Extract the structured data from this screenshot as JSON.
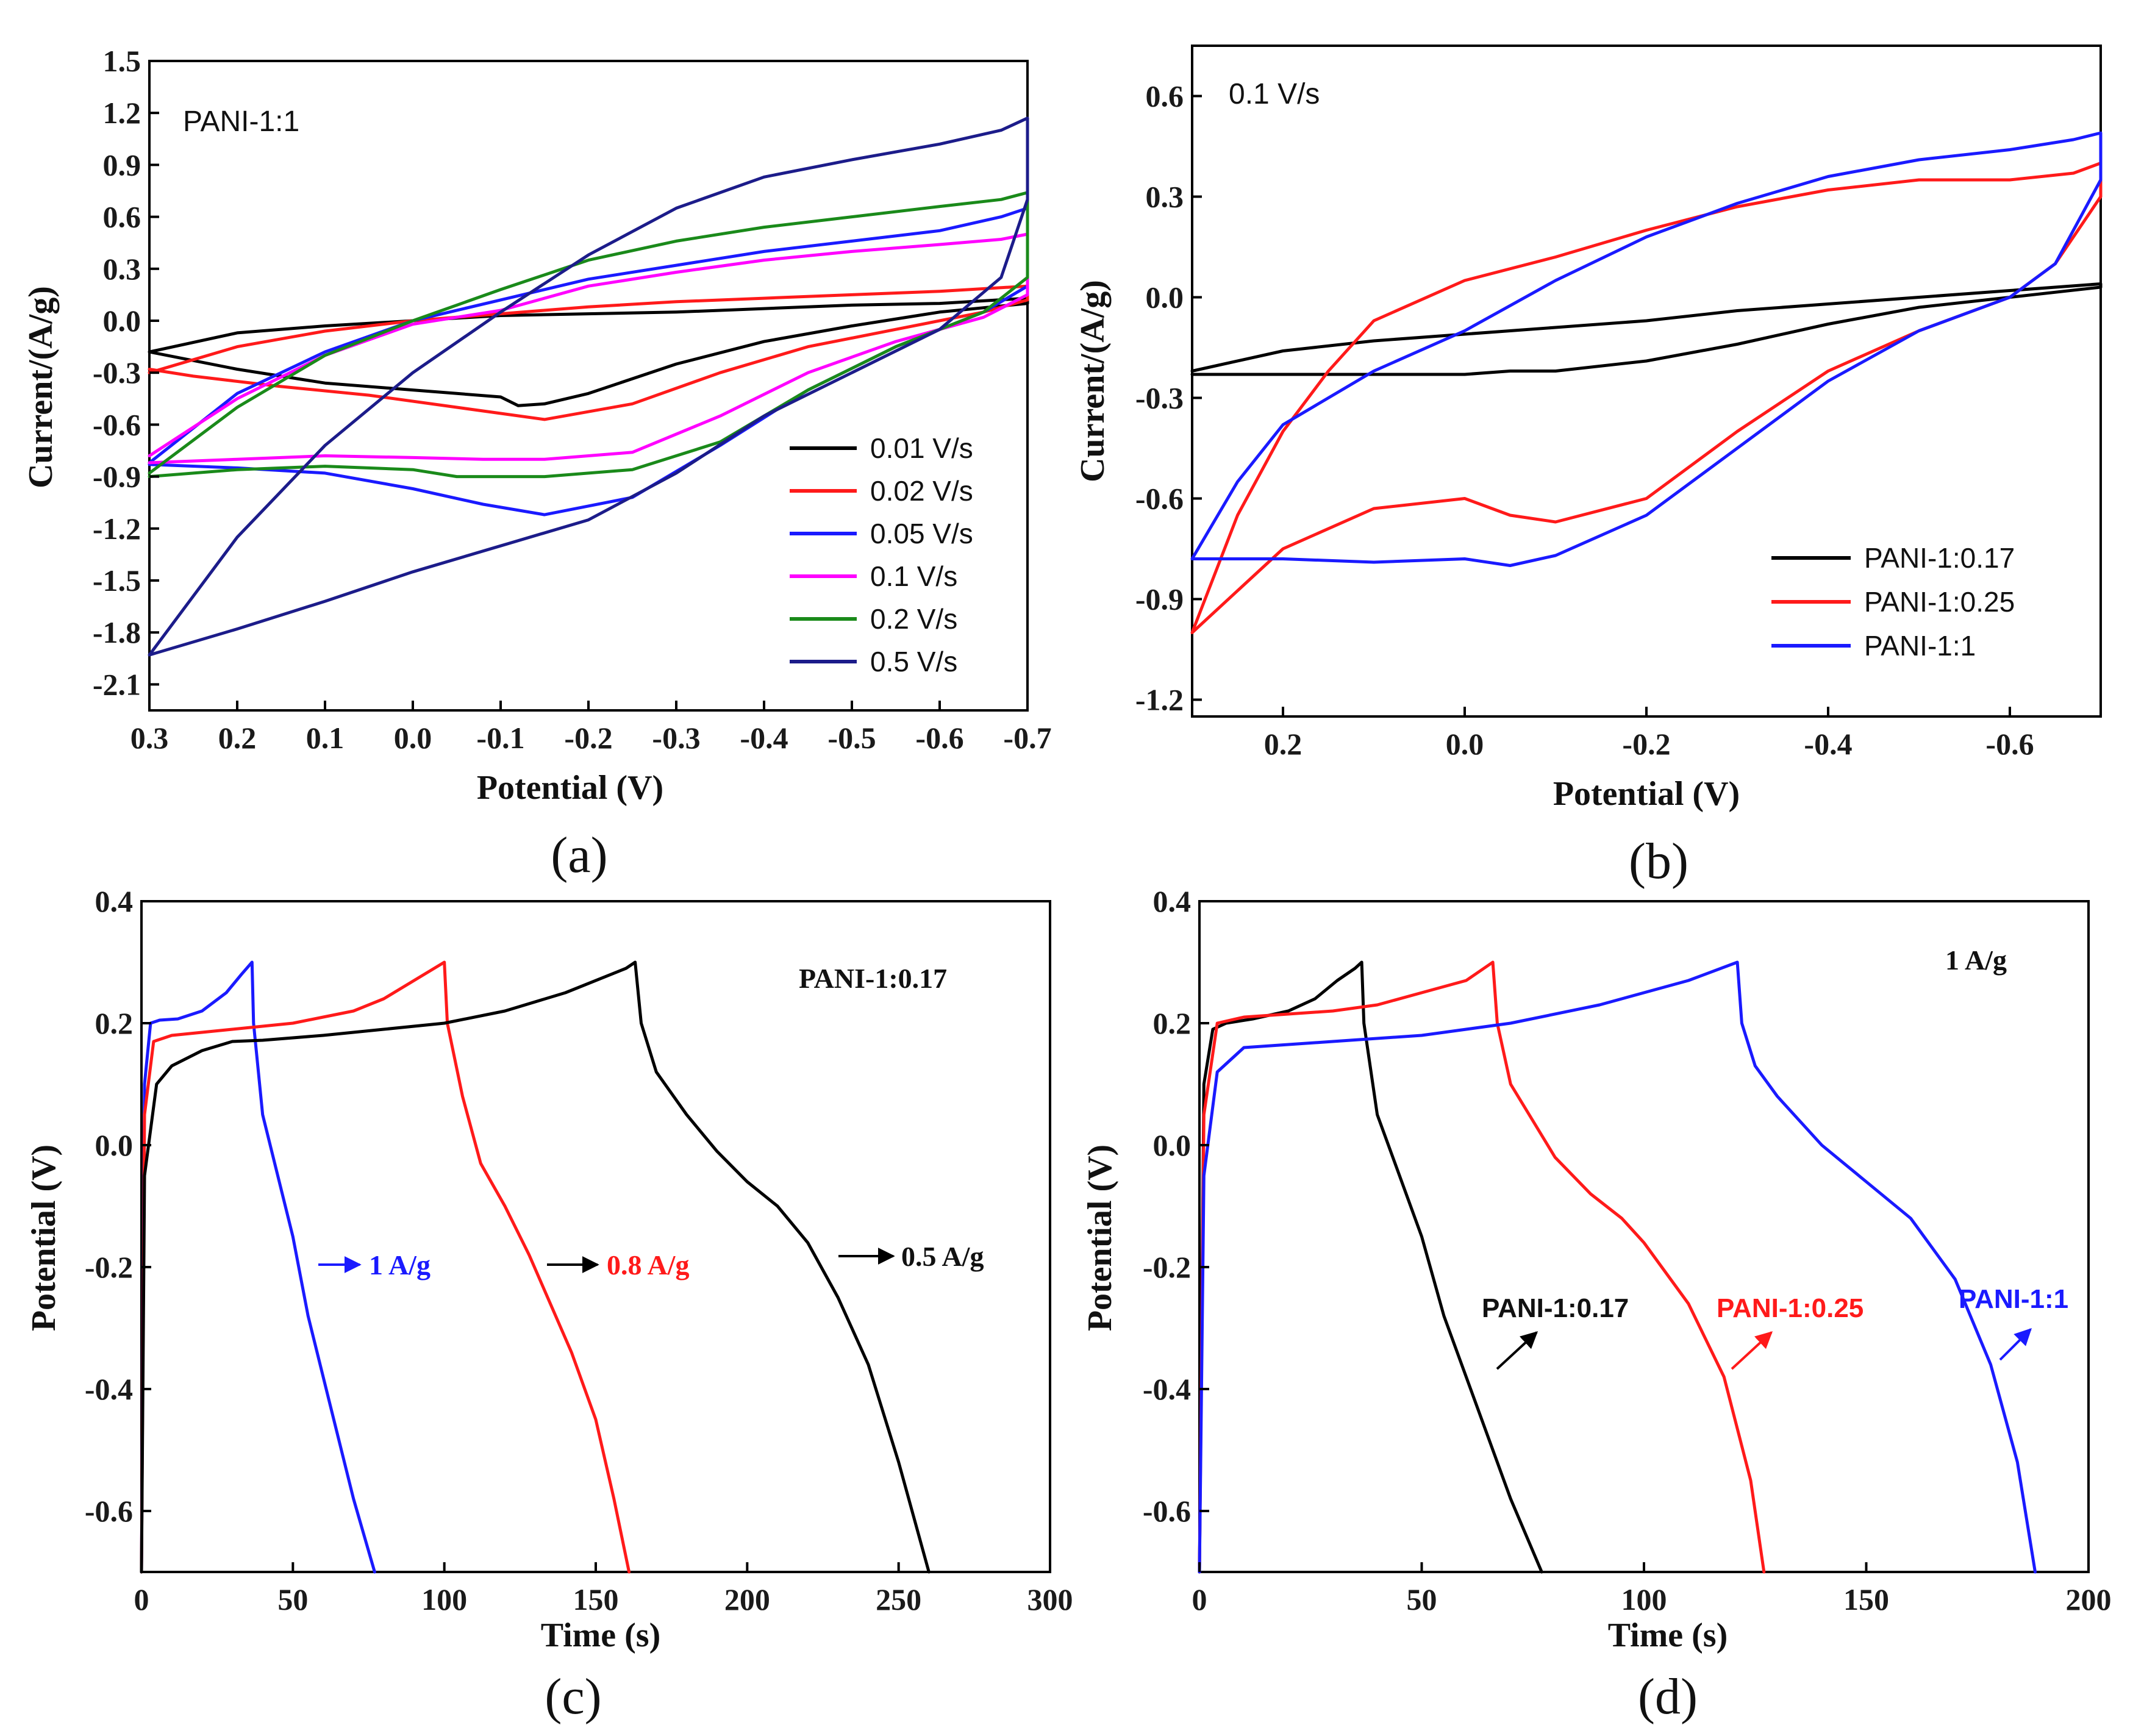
{
  "colors": {
    "black": "#000000",
    "red": "#ff1a1a",
    "blue": "#1a1aff",
    "magenta": "#ff00ff",
    "green": "#1a8a1a",
    "navy": "#1c1c8a"
  },
  "chart_data": [
    {
      "id": "a",
      "type": "line",
      "panel_label": "(a)",
      "xlabel": "Potential (V)",
      "ylabel": "Current/(A/g)",
      "xlim": [
        0.3,
        -0.7
      ],
      "ylim": [
        -2.25,
        1.5
      ],
      "x_ticks": [
        "0.3",
        "0.2",
        "0.1",
        "0.0",
        "-0.1",
        "-0.2",
        "-0.3",
        "-0.4",
        "-0.5",
        "-0.6",
        "-0.7"
      ],
      "y_ticks": [
        "1.5",
        "1.2",
        "0.9",
        "0.6",
        "0.3",
        "0.0",
        "-0.3",
        "-0.6",
        "-0.9",
        "-1.2",
        "-1.5",
        "-1.8",
        "-2.1"
      ],
      "annotation": "PANI-1:1",
      "legend_position": "bottom-right",
      "series": [
        {
          "name": "0.01 V/s",
          "color": "#000000",
          "x": [
            0.3,
            0.2,
            0.1,
            0.0,
            -0.1,
            -0.2,
            -0.3,
            -0.4,
            -0.5,
            -0.6,
            -0.7,
            -0.7,
            -0.6,
            -0.5,
            -0.4,
            -0.3,
            -0.2,
            -0.15,
            -0.12,
            -0.1,
            -0.05,
            0.0,
            0.1,
            0.2,
            0.3
          ],
          "y": [
            -0.18,
            -0.07,
            -0.03,
            0.0,
            0.03,
            0.04,
            0.05,
            0.07,
            0.09,
            0.1,
            0.13,
            0.1,
            0.05,
            -0.03,
            -0.12,
            -0.25,
            -0.42,
            -0.48,
            -0.49,
            -0.44,
            -0.42,
            -0.4,
            -0.36,
            -0.28,
            -0.18
          ]
        },
        {
          "name": "0.02 V/s",
          "color": "#ff1a1a",
          "x": [
            0.3,
            0.2,
            0.1,
            0.0,
            -0.1,
            -0.2,
            -0.3,
            -0.4,
            -0.5,
            -0.6,
            -0.7,
            -0.7,
            -0.65,
            -0.55,
            -0.45,
            -0.35,
            -0.25,
            -0.15,
            -0.05,
            0.05,
            0.15,
            0.25,
            0.3
          ],
          "y": [
            -0.3,
            -0.15,
            -0.06,
            0.0,
            0.04,
            0.08,
            0.11,
            0.13,
            0.15,
            0.17,
            0.2,
            0.12,
            0.05,
            -0.05,
            -0.15,
            -0.3,
            -0.48,
            -0.57,
            -0.5,
            -0.43,
            -0.38,
            -0.32,
            -0.28
          ]
        },
        {
          "name": "0.05 V/s",
          "color": "#1a1aff",
          "x": [
            0.3,
            0.2,
            0.1,
            0.0,
            -0.1,
            -0.2,
            -0.3,
            -0.4,
            -0.5,
            -0.6,
            -0.67,
            -0.7,
            -0.7,
            -0.65,
            -0.55,
            -0.45,
            -0.35,
            -0.25,
            -0.15,
            -0.08,
            0.0,
            0.1,
            0.2,
            0.3
          ],
          "y": [
            -0.82,
            -0.42,
            -0.18,
            0.0,
            0.12,
            0.24,
            0.32,
            0.4,
            0.46,
            0.52,
            0.6,
            0.65,
            0.2,
            0.05,
            -0.15,
            -0.4,
            -0.72,
            -1.02,
            -1.12,
            -1.06,
            -0.97,
            -0.88,
            -0.85,
            -0.83
          ]
        },
        {
          "name": "0.1 V/s",
          "color": "#ff00ff",
          "x": [
            0.3,
            0.2,
            0.1,
            0.0,
            -0.1,
            -0.2,
            -0.3,
            -0.4,
            -0.5,
            -0.6,
            -0.67,
            -0.7,
            -0.7,
            -0.65,
            -0.55,
            -0.45,
            -0.35,
            -0.25,
            -0.15,
            -0.08,
            0.0,
            0.1,
            0.2,
            0.3
          ],
          "y": [
            -0.78,
            -0.45,
            -0.2,
            -0.02,
            0.06,
            0.2,
            0.28,
            0.35,
            0.4,
            0.44,
            0.47,
            0.5,
            0.15,
            0.02,
            -0.12,
            -0.3,
            -0.55,
            -0.76,
            -0.8,
            -0.8,
            -0.79,
            -0.78,
            -0.8,
            -0.82
          ]
        },
        {
          "name": "0.2 V/s",
          "color": "#1a8a1a",
          "x": [
            0.3,
            0.2,
            0.1,
            0.0,
            -0.1,
            -0.2,
            -0.3,
            -0.4,
            -0.5,
            -0.6,
            -0.67,
            -0.7,
            -0.7,
            -0.65,
            -0.55,
            -0.45,
            -0.35,
            -0.25,
            -0.15,
            -0.05,
            0.0,
            0.1,
            0.2,
            0.3
          ],
          "y": [
            -0.88,
            -0.5,
            -0.2,
            0.0,
            0.18,
            0.35,
            0.46,
            0.54,
            0.6,
            0.66,
            0.7,
            0.74,
            0.25,
            0.05,
            -0.15,
            -0.4,
            -0.7,
            -0.86,
            -0.9,
            -0.9,
            -0.86,
            -0.84,
            -0.86,
            -0.9
          ]
        },
        {
          "name": "0.5 V/s",
          "color": "#1c1c8a",
          "x": [
            0.3,
            0.2,
            0.1,
            0.0,
            -0.1,
            -0.2,
            -0.3,
            -0.4,
            -0.5,
            -0.6,
            -0.67,
            -0.7,
            -0.7,
            -0.67,
            -0.6,
            -0.5,
            -0.4,
            -0.3,
            -0.2,
            -0.1,
            0.0,
            0.1,
            0.2,
            0.3
          ],
          "y": [
            -1.93,
            -1.25,
            -0.72,
            -0.3,
            0.05,
            0.38,
            0.65,
            0.83,
            0.93,
            1.02,
            1.1,
            1.17,
            0.7,
            0.25,
            -0.05,
            -0.3,
            -0.55,
            -0.88,
            -1.15,
            -1.3,
            -1.45,
            -1.62,
            -1.78,
            -1.93
          ]
        }
      ]
    },
    {
      "id": "b",
      "type": "line",
      "panel_label": "(b)",
      "xlabel": "Potential (V)",
      "ylabel": "Current/(A/g)",
      "xlim": [
        0.3,
        -0.7
      ],
      "ylim": [
        -1.25,
        0.75
      ],
      "x_ticks": [
        "0.2",
        "0.0",
        "-0.2",
        "-0.4",
        "-0.6"
      ],
      "y_ticks": [
        "0.6",
        "0.3",
        "0.0",
        "-0.3",
        "-0.6",
        "-0.9",
        "-1.2"
      ],
      "annotation": "0.1 V/s",
      "legend_position": "bottom-right",
      "series": [
        {
          "name": "PANI-1:0.17",
          "color": "#000000",
          "x": [
            0.3,
            0.2,
            0.1,
            0.0,
            -0.1,
            -0.2,
            -0.3,
            -0.4,
            -0.5,
            -0.6,
            -0.7,
            -0.7,
            -0.6,
            -0.5,
            -0.4,
            -0.3,
            -0.2,
            -0.1,
            -0.05,
            0.0,
            0.1,
            0.2,
            0.3
          ],
          "y": [
            -0.22,
            -0.16,
            -0.13,
            -0.11,
            -0.09,
            -0.07,
            -0.04,
            -0.02,
            0.0,
            0.02,
            0.04,
            0.03,
            0.0,
            -0.03,
            -0.08,
            -0.14,
            -0.19,
            -0.22,
            -0.22,
            -0.23,
            -0.23,
            -0.23,
            -0.23
          ]
        },
        {
          "name": "PANI-1:0.25",
          "color": "#ff1a1a",
          "x": [
            0.3,
            0.25,
            0.2,
            0.15,
            0.1,
            0.0,
            -0.1,
            -0.2,
            -0.3,
            -0.4,
            -0.5,
            -0.6,
            -0.67,
            -0.7,
            -0.7,
            -0.65,
            -0.6,
            -0.5,
            -0.4,
            -0.3,
            -0.2,
            -0.1,
            -0.05,
            0.0,
            0.1,
            0.2,
            0.3
          ],
          "y": [
            -1.0,
            -0.65,
            -0.4,
            -0.22,
            -0.07,
            0.05,
            0.12,
            0.2,
            0.27,
            0.32,
            0.35,
            0.35,
            0.37,
            0.4,
            0.3,
            0.1,
            0.0,
            -0.1,
            -0.22,
            -0.4,
            -0.6,
            -0.67,
            -0.65,
            -0.6,
            -0.63,
            -0.75,
            -1.0
          ]
        },
        {
          "name": "PANI-1:1",
          "color": "#1a1aff",
          "x": [
            0.3,
            0.25,
            0.2,
            0.1,
            0.0,
            -0.1,
            -0.2,
            -0.3,
            -0.4,
            -0.5,
            -0.6,
            -0.67,
            -0.7,
            -0.7,
            -0.65,
            -0.6,
            -0.5,
            -0.4,
            -0.3,
            -0.2,
            -0.1,
            -0.05,
            0.0,
            0.1,
            0.2,
            0.3
          ],
          "y": [
            -0.78,
            -0.55,
            -0.38,
            -0.22,
            -0.1,
            0.05,
            0.18,
            0.28,
            0.36,
            0.41,
            0.44,
            0.47,
            0.49,
            0.35,
            0.1,
            0.0,
            -0.1,
            -0.25,
            -0.45,
            -0.65,
            -0.77,
            -0.8,
            -0.78,
            -0.79,
            -0.78,
            -0.78
          ]
        }
      ]
    },
    {
      "id": "c",
      "type": "line",
      "panel_label": "(c)",
      "xlabel": "Time (s)",
      "ylabel": "Potential (V)",
      "xlim": [
        0,
        300
      ],
      "ylim": [
        -0.7,
        0.4
      ],
      "x_ticks": [
        "0",
        "50",
        "100",
        "150",
        "200",
        "250",
        "300"
      ],
      "y_ticks": [
        "0.4",
        "0.2",
        "0.0",
        "-0.2",
        "-0.4",
        "-0.6"
      ],
      "annotation": "PANI-1:0.17",
      "arrow_labels": [
        "1 A/g",
        "0.8 A/g",
        "0.5 A/g"
      ],
      "series": [
        {
          "name": "1 A/g",
          "color": "#1a1aff",
          "x": [
            0,
            1,
            3,
            6,
            12,
            20,
            28,
            33,
            36.5,
            37,
            40,
            45,
            50,
            55,
            62,
            70,
            77
          ],
          "y": [
            -0.7,
            0.1,
            0.2,
            0.205,
            0.207,
            0.22,
            0.25,
            0.28,
            0.3,
            0.2,
            0.05,
            -0.05,
            -0.15,
            -0.28,
            -0.42,
            -0.58,
            -0.7
          ]
        },
        {
          "name": "0.8 A/g",
          "color": "#ff1a1a",
          "x": [
            0,
            1,
            4,
            10,
            20,
            30,
            40,
            50,
            60,
            70,
            80,
            90,
            100,
            101,
            106,
            112,
            120,
            128,
            135,
            142,
            150,
            156,
            161
          ],
          "y": [
            -0.7,
            0.05,
            0.17,
            0.18,
            0.185,
            0.19,
            0.195,
            0.2,
            0.21,
            0.22,
            0.24,
            0.27,
            0.3,
            0.2,
            0.08,
            -0.03,
            -0.1,
            -0.18,
            -0.26,
            -0.34,
            -0.45,
            -0.58,
            -0.7
          ]
        },
        {
          "name": "0.5 A/g",
          "color": "#000000",
          "x": [
            0,
            1,
            5,
            10,
            20,
            30,
            40,
            60,
            80,
            100,
            120,
            140,
            160,
            163,
            165,
            170,
            180,
            190,
            200,
            210,
            220,
            230,
            240,
            250,
            260
          ],
          "y": [
            -0.7,
            -0.05,
            0.1,
            0.13,
            0.155,
            0.17,
            0.172,
            0.18,
            0.19,
            0.2,
            0.22,
            0.25,
            0.29,
            0.3,
            0.2,
            0.12,
            0.05,
            -0.01,
            -0.06,
            -0.1,
            -0.16,
            -0.25,
            -0.36,
            -0.52,
            -0.7
          ]
        }
      ]
    },
    {
      "id": "d",
      "type": "line",
      "panel_label": "(d)",
      "xlabel": "Time (s)",
      "ylabel": "Potential (V)",
      "xlim": [
        0,
        200
      ],
      "ylim": [
        -0.7,
        0.4
      ],
      "x_ticks": [
        "0",
        "50",
        "100",
        "150",
        "200"
      ],
      "y_ticks": [
        "0.4",
        "0.2",
        "0.0",
        "-0.2",
        "-0.4",
        "-0.6"
      ],
      "annotation": "1 A/g",
      "series": [
        {
          "name": "PANI-1:0.17",
          "color": "#000000",
          "x": [
            0,
            1,
            3,
            6,
            12,
            20,
            26,
            31,
            35,
            36.5,
            37,
            40,
            45,
            50,
            55,
            62,
            70,
            77
          ],
          "y": [
            -0.7,
            0.1,
            0.19,
            0.2,
            0.207,
            0.22,
            0.24,
            0.27,
            0.29,
            0.3,
            0.2,
            0.05,
            -0.05,
            -0.15,
            -0.28,
            -0.42,
            -0.58,
            -0.7
          ]
        },
        {
          "name": "PANI-1:0.25",
          "color": "#ff1a1a",
          "x": [
            0,
            1,
            4,
            10,
            20,
            30,
            40,
            50,
            60,
            66,
            67,
            70,
            75,
            80,
            88,
            95,
            100,
            110,
            118,
            124,
            127
          ],
          "y": [
            -0.7,
            0.05,
            0.2,
            0.21,
            0.215,
            0.22,
            0.23,
            0.25,
            0.27,
            0.3,
            0.2,
            0.1,
            0.04,
            -0.02,
            -0.08,
            -0.12,
            -0.16,
            -0.26,
            -0.38,
            -0.55,
            -0.7
          ]
        },
        {
          "name": "PANI-1:1",
          "color": "#1a1aff",
          "x": [
            0,
            1,
            4,
            10,
            20,
            30,
            50,
            70,
            90,
            110,
            121,
            122,
            125,
            130,
            140,
            150,
            160,
            170,
            178,
            184,
            188
          ],
          "y": [
            -0.7,
            -0.05,
            0.12,
            0.16,
            0.165,
            0.17,
            0.18,
            0.2,
            0.23,
            0.27,
            0.3,
            0.2,
            0.13,
            0.08,
            0.0,
            -0.06,
            -0.12,
            -0.22,
            -0.36,
            -0.52,
            -0.7
          ]
        }
      ]
    }
  ]
}
